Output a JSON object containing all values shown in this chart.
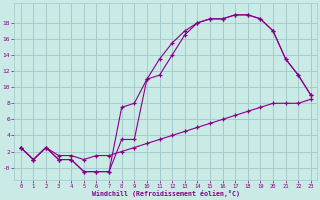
{
  "xlabel": "Windchill (Refroidissement éolien,°C)",
  "bg_color": "#caeae6",
  "line_color": "#880088",
  "grid_color": "#a0c8c8",
  "line1_x": [
    0,
    1,
    2,
    3,
    4,
    5,
    6,
    7,
    8,
    9,
    10,
    11,
    12,
    13,
    14,
    15,
    16,
    17,
    18,
    19,
    20,
    21,
    22,
    23
  ],
  "line1_y": [
    2.5,
    1.0,
    2.5,
    1.0,
    1.0,
    -0.5,
    -0.5,
    -0.5,
    3.5,
    3.5,
    11.0,
    11.5,
    14.0,
    16.5,
    18.0,
    18.5,
    18.5,
    19.0,
    19.0,
    18.5,
    17.0,
    13.5,
    11.5,
    9.0
  ],
  "line2_x": [
    0,
    1,
    2,
    3,
    4,
    5,
    6,
    7,
    8,
    9,
    10,
    11,
    12,
    13,
    14,
    15,
    16,
    17,
    18,
    19,
    20,
    21,
    22,
    23
  ],
  "line2_y": [
    2.5,
    1.0,
    2.5,
    1.0,
    1.0,
    -0.5,
    -0.5,
    -0.5,
    7.5,
    8.0,
    11.0,
    13.5,
    15.5,
    17.0,
    18.0,
    18.5,
    18.5,
    19.0,
    19.0,
    18.5,
    17.0,
    13.5,
    11.5,
    9.0
  ],
  "line3_x": [
    0,
    1,
    2,
    3,
    4,
    5,
    6,
    7,
    8,
    9,
    10,
    11,
    12,
    13,
    14,
    15,
    16,
    17,
    18,
    19,
    20,
    21,
    22,
    23
  ],
  "line3_y": [
    2.5,
    1.0,
    2.5,
    1.5,
    1.5,
    1.0,
    1.5,
    1.5,
    2.0,
    2.5,
    3.0,
    3.5,
    4.0,
    4.5,
    5.0,
    5.5,
    6.0,
    6.5,
    7.0,
    7.5,
    8.0,
    8.0,
    8.0,
    8.5
  ],
  "xlim": [
    -0.5,
    23.5
  ],
  "ylim": [
    -1.5,
    20.5
  ],
  "ytick_vals": [
    0,
    2,
    4,
    6,
    8,
    10,
    12,
    14,
    16,
    18
  ],
  "ytick_labels": [
    "-0",
    "2",
    "4",
    "6",
    "8",
    "10",
    "12",
    "14",
    "16",
    "18"
  ],
  "xticks": [
    0,
    1,
    2,
    3,
    4,
    5,
    6,
    7,
    8,
    9,
    10,
    11,
    12,
    13,
    14,
    15,
    16,
    17,
    18,
    19,
    20,
    21,
    22,
    23
  ]
}
